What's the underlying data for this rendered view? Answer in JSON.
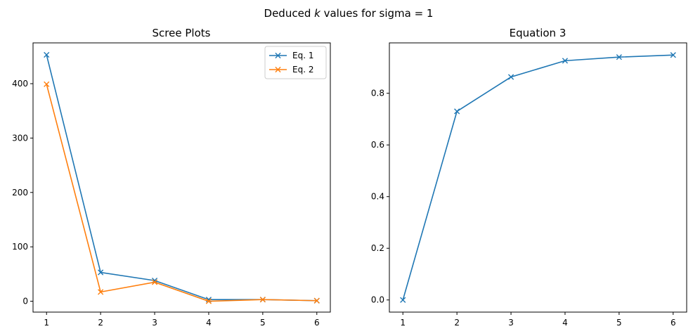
{
  "figure": {
    "suptitle_prefix": "Deduced ",
    "suptitle_var": "k",
    "suptitle_suffix": " values for sigma = 1"
  },
  "chart_data": [
    {
      "type": "line",
      "title": "Scree Plots",
      "xlabel": "",
      "ylabel": "",
      "x": [
        1,
        2,
        3,
        4,
        5,
        6
      ],
      "xticks": [
        "1",
        "2",
        "3",
        "4",
        "5",
        "6"
      ],
      "xlim": [
        0.75,
        6.25
      ],
      "yticks": [
        "0",
        "100",
        "200",
        "300",
        "400"
      ],
      "ylim": [
        -20,
        475
      ],
      "grid": false,
      "legend": "top-right",
      "marker": "x",
      "series": [
        {
          "name": "Eq. 1",
          "color": "#1f77b4",
          "values": [
            453,
            53,
            38,
            3,
            3,
            1
          ]
        },
        {
          "name": "Eq. 2",
          "color": "#ff7f0e",
          "values": [
            399,
            17,
            35,
            0,
            3,
            1
          ]
        }
      ]
    },
    {
      "type": "line",
      "title": "Equation 3",
      "xlabel": "",
      "ylabel": "",
      "x": [
        1,
        2,
        3,
        4,
        5,
        6
      ],
      "xticks": [
        "1",
        "2",
        "3",
        "4",
        "5",
        "6"
      ],
      "xlim": [
        0.75,
        6.25
      ],
      "yticks": [
        "0.0",
        "0.2",
        "0.4",
        "0.6",
        "0.8"
      ],
      "ylim": [
        -0.047,
        0.995
      ],
      "grid": false,
      "legend": "none",
      "marker": "x",
      "series": [
        {
          "color": "#1f77b4",
          "values": [
            0.0,
            0.73,
            0.863,
            0.926,
            0.94,
            0.948
          ]
        }
      ]
    }
  ]
}
